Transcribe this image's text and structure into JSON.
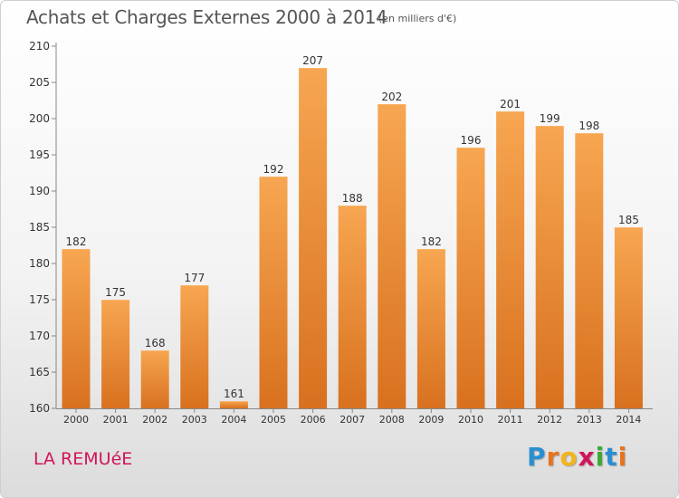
{
  "title": "Achats et Charges Externes 2000 à 2014",
  "subtitle": "(en milliers d'€)",
  "commune": "LA REMUéE",
  "logo": {
    "text": "Proxiti",
    "letters": [
      {
        "ch": "P",
        "color": "#2a8fd1"
      },
      {
        "ch": "r",
        "color": "#e8731c"
      },
      {
        "ch": "o",
        "color": "#f2b51d"
      },
      {
        "ch": "x",
        "color": "#d1145a"
      },
      {
        "ch": "i",
        "color": "#3aaa35"
      },
      {
        "ch": "t",
        "color": "#2a8fd1"
      },
      {
        "ch": "i",
        "color": "#e8731c"
      }
    ]
  },
  "chart_data": {
    "type": "bar",
    "categories": [
      "2000",
      "2001",
      "2002",
      "2003",
      "2004",
      "2005",
      "2006",
      "2007",
      "2008",
      "2009",
      "2010",
      "2011",
      "2012",
      "2013",
      "2014"
    ],
    "values": [
      182,
      175,
      168,
      177,
      161,
      192,
      207,
      188,
      202,
      182,
      196,
      201,
      199,
      198,
      185
    ],
    "ylim": [
      160,
      210
    ],
    "yticks": [
      160,
      165,
      170,
      175,
      180,
      185,
      190,
      195,
      200,
      205,
      210
    ],
    "grid": false,
    "legend": "none",
    "bar_color_top": "#f7a651",
    "bar_color_bottom": "#d8711f"
  }
}
